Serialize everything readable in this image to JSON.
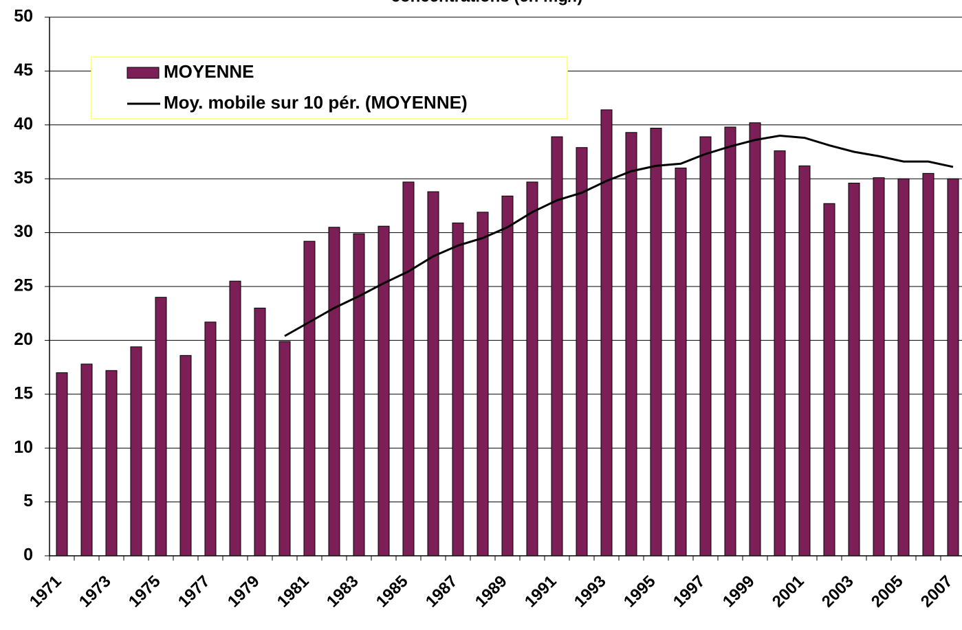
{
  "chart_data": {
    "type": "bar",
    "title": "concentrations (en mg/l)",
    "categories": [
      "1971",
      null,
      "1973",
      null,
      "1975",
      null,
      "1977",
      null,
      "1979",
      null,
      "1981",
      null,
      "1983",
      null,
      "1985",
      null,
      "1987",
      null,
      "1989",
      null,
      "1991",
      null,
      "1993",
      null,
      "1995",
      null,
      "1997",
      null,
      "1999",
      null,
      "2001",
      null,
      "2003",
      null,
      "2005",
      null,
      "2007"
    ],
    "series": [
      {
        "name": "MOYENNE",
        "type": "bar",
        "color": "#7b1f56",
        "values": [
          17,
          17.8,
          17.2,
          19.4,
          24,
          18.6,
          21.7,
          25.5,
          23,
          19.9,
          29.2,
          30.5,
          29.9,
          30.6,
          34.7,
          33.8,
          30.9,
          31.9,
          33.4,
          34.7,
          38.9,
          37.9,
          41.4,
          39.3,
          39.7,
          36,
          38.9,
          39.8,
          40.2,
          37.6,
          36.2,
          32.7,
          34.6,
          35.1,
          35,
          35.5,
          35
        ]
      },
      {
        "name": "Moy. mobile sur 10 pér. (MOYENNE)",
        "type": "line",
        "color": "#000000",
        "values": [
          null,
          null,
          null,
          null,
          null,
          null,
          null,
          null,
          null,
          20.4,
          21.7,
          23.0,
          24.1,
          25.3,
          26.4,
          27.8,
          28.8,
          29.5,
          30.5,
          31.9,
          33.0,
          33.7,
          34.8,
          35.7,
          36.2,
          36.4,
          37.3,
          38.0,
          38.6,
          39.0,
          38.8,
          38.1,
          37.5,
          37.1,
          36.6,
          36.6,
          36.1
        ]
      }
    ],
    "ylim": [
      0,
      50
    ],
    "yticks": [
      0,
      5,
      10,
      15,
      20,
      25,
      30,
      35,
      40,
      45,
      50
    ],
    "grid": true,
    "legend": "top-left"
  }
}
